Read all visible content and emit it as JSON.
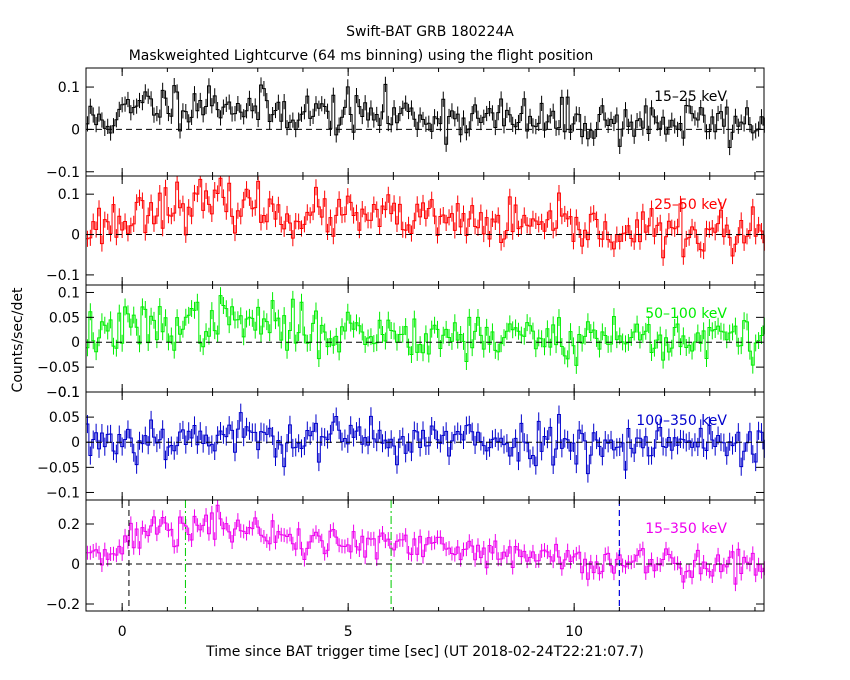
{
  "chart_data": {
    "type": "line",
    "title": "Swift-BAT GRB 180224A",
    "subtitle": "Maskweighted Lightcurve (64 ms binning) using the flight position",
    "xlabel": "Time since BAT trigger time [sec] (UT 2018-02-24T22:21:07.7)",
    "ylabel": "Counts/sec/det",
    "xlim": [
      -0.8,
      14.2
    ],
    "x_ticks": [
      0,
      5,
      10
    ],
    "bin_width_sec": 0.064,
    "vertical_markers": [
      {
        "x": 0.15,
        "color": "#000000",
        "style": "dashed"
      },
      {
        "x": 1.4,
        "color": "#00cc00",
        "style": "dashdot"
      },
      {
        "x": 5.95,
        "color": "#00cc00",
        "style": "dashdot"
      },
      {
        "x": 11.0,
        "color": "#000000",
        "style": "dashed"
      },
      {
        "x": 11.0,
        "color": "#0000ff",
        "style": "dashed"
      }
    ],
    "panels": [
      {
        "name": "15-25 keV",
        "label": "15–25 keV",
        "color": "#000000",
        "ylim": [
          -0.11,
          0.145
        ],
        "yticks": [
          {
            "v": 0.1,
            "t": "0.1"
          },
          {
            "v": 0,
            "t": "0"
          },
          {
            "v": -0.1,
            "t": "−0.1"
          }
        ],
        "trend": [
          [
            -0.8,
            0.02
          ],
          [
            0.0,
            0.03
          ],
          [
            0.5,
            0.06
          ],
          [
            2.3,
            0.065
          ],
          [
            3.0,
            0.045
          ],
          [
            6.0,
            0.035
          ],
          [
            9.0,
            0.02
          ],
          [
            14.2,
            0.015
          ]
        ],
        "noise": 0.026,
        "err": 0.018,
        "seed": 11
      },
      {
        "name": "25-50 keV",
        "label": "25–50 keV",
        "color": "#ff0000",
        "ylim": [
          -0.125,
          0.145
        ],
        "yticks": [
          {
            "v": 0.1,
            "t": "0.1"
          },
          {
            "v": 0,
            "t": "0"
          },
          {
            "v": -0.1,
            "t": "−0.1"
          }
        ],
        "trend": [
          [
            -0.8,
            0.02
          ],
          [
            0.2,
            0.035
          ],
          [
            0.6,
            0.075
          ],
          [
            2.8,
            0.075
          ],
          [
            3.5,
            0.05
          ],
          [
            6.0,
            0.04
          ],
          [
            9.0,
            0.02
          ],
          [
            12.0,
            0.005
          ],
          [
            14.2,
            0.0
          ]
        ],
        "noise": 0.028,
        "err": 0.02,
        "seed": 23
      },
      {
        "name": "50-100 keV",
        "label": "50–100 keV",
        "color": "#00ee00",
        "ylim": [
          -0.1,
          0.115
        ],
        "yticks": [
          {
            "v": 0.1,
            "t": "0.1"
          },
          {
            "v": 0.05,
            "t": "0.05"
          },
          {
            "v": 0,
            "t": "0"
          },
          {
            "v": -0.05,
            "t": "−0.05"
          },
          {
            "v": -0.1,
            "t": "−0.1"
          }
        ],
        "trend": [
          [
            -0.8,
            0.015
          ],
          [
            0.5,
            0.03
          ],
          [
            2.5,
            0.045
          ],
          [
            4.0,
            0.025
          ],
          [
            7.0,
            0.015
          ],
          [
            14.2,
            0.005
          ]
        ],
        "noise": 0.024,
        "err": 0.017,
        "seed": 37
      },
      {
        "name": "100-350 keV",
        "label": "100–350 keV",
        "color": "#0000cc",
        "ylim": [
          -0.115,
          0.1
        ],
        "yticks": [
          {
            "v": 0.1,
            "t": "0.1"
          },
          {
            "v": 0.05,
            "t": "0.05"
          },
          {
            "v": 0,
            "t": "0"
          },
          {
            "v": -0.05,
            "t": "−0.05"
          },
          {
            "v": -0.1,
            "t": "−0.1"
          }
        ],
        "trend": [
          [
            -0.8,
            0.005
          ],
          [
            2.0,
            0.012
          ],
          [
            5.0,
            0.008
          ],
          [
            9.0,
            0.0
          ],
          [
            14.2,
            0.0
          ]
        ],
        "noise": 0.022,
        "err": 0.018,
        "seed": 53
      },
      {
        "name": "15-350 keV",
        "label": "15–350 keV",
        "color": "#ee00ee",
        "ylim": [
          -0.235,
          0.32
        ],
        "yticks": [
          {
            "v": 0.2,
            "t": "0.2"
          },
          {
            "v": 0,
            "t": "0"
          },
          {
            "v": -0.2,
            "t": "−0.2"
          }
        ],
        "trend": [
          [
            -0.8,
            0.07
          ],
          [
            0.2,
            0.1
          ],
          [
            0.6,
            0.18
          ],
          [
            2.5,
            0.19
          ],
          [
            3.5,
            0.12
          ],
          [
            6.0,
            0.09
          ],
          [
            9.0,
            0.04
          ],
          [
            12.0,
            0.0
          ],
          [
            14.2,
            0.0
          ]
        ],
        "noise": 0.045,
        "err": 0.035,
        "seed": 71
      }
    ]
  }
}
